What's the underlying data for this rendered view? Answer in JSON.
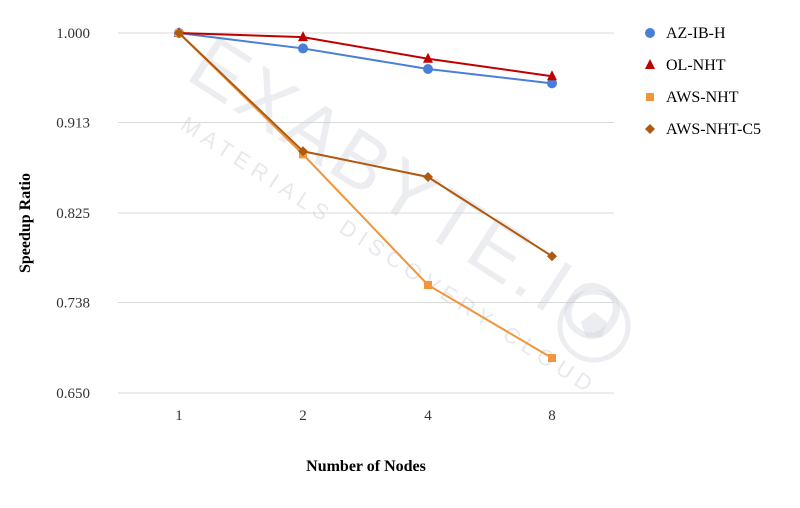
{
  "chart_data": {
    "type": "line",
    "title": "",
    "xlabel": "Number of Nodes",
    "ylabel": "Speedup Ratio",
    "categories": [
      "1",
      "2",
      "4",
      "8"
    ],
    "ylim": [
      0.65,
      1.0
    ],
    "yticks": [
      "0.650",
      "0.738",
      "0.825",
      "0.913",
      "1.000"
    ],
    "grid": true,
    "legend": "right",
    "series": [
      {
        "name": "AZ-IB-H",
        "values": [
          1.0,
          0.985,
          0.965,
          0.951
        ],
        "color": "#4a7fd8",
        "marker": "circle"
      },
      {
        "name": "OL-NHT",
        "values": [
          1.0,
          0.996,
          0.975,
          0.958
        ],
        "color": "#c00000",
        "marker": "triangle"
      },
      {
        "name": "AWS-NHT",
        "values": [
          1.0,
          0.882,
          0.755,
          0.684
        ],
        "color": "#f0953a",
        "marker": "square"
      },
      {
        "name": "AWS-NHT-C5",
        "values": [
          1.0,
          0.885,
          0.86,
          0.783
        ],
        "color": "#b05a10",
        "marker": "diamond"
      }
    ]
  },
  "watermark": {
    "main": "EXABYTE.IO",
    "sub": "MATERIALS DISCOVERY CLOUD"
  }
}
